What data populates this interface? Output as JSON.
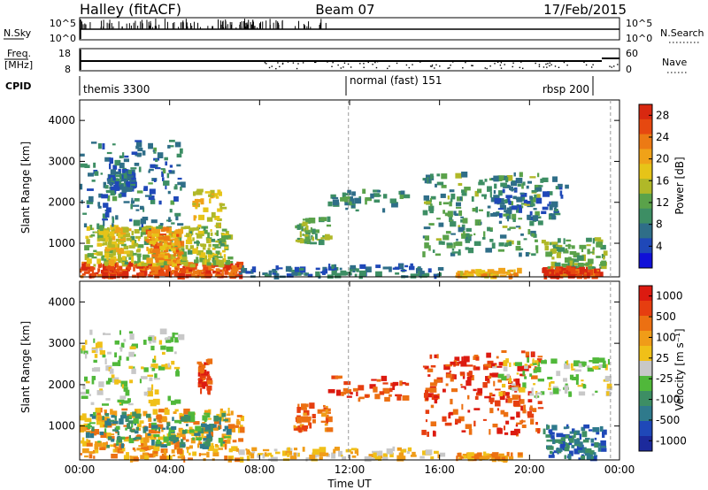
{
  "header": {
    "radar": "Halley (fitACF)",
    "beam": "Beam 07",
    "date": "17/Feb/2015"
  },
  "noise_panel": {
    "left_label": "N.Sky",
    "right_label": "N.Search",
    "left_ticks": [
      "10^5",
      "10^0"
    ],
    "right_ticks": [
      "10^5",
      "10^0"
    ]
  },
  "freq_panel": {
    "left_label_1": "Freq.",
    "left_label_2": "[MHz]",
    "right_label": "Nave",
    "left_ticks": [
      "18",
      "8"
    ],
    "right_ticks": [
      "60",
      "0"
    ]
  },
  "cpid": {
    "label": "CPID",
    "segments": [
      {
        "name": "themis 3300",
        "start_hour": 0.0,
        "end_hour": 11.95
      },
      {
        "name": "normal (fast) 151",
        "start_hour": 11.95,
        "end_hour": 23.6
      },
      {
        "name": "rbsp 200",
        "start_hour": 23.6,
        "end_hour": 24.0
      }
    ]
  },
  "colors": {
    "power": [
      "#1010d8",
      "#1f48b8",
      "#2f6e88",
      "#3d8e64",
      "#5aa24a",
      "#b0b828",
      "#e6c418",
      "#f0a218",
      "#ec7a14",
      "#e64810",
      "#d82810"
    ],
    "velocity": [
      "#1c2a9c",
      "#1f48b8",
      "#2f7a8c",
      "#3d8e64",
      "#50b83a",
      "#c8c8c8",
      "#f0c018",
      "#f09c18",
      "#ec7012",
      "#e63e10",
      "#dc1a10"
    ]
  },
  "chart_data": [
    {
      "type": "heatmap",
      "title": "",
      "xlabel": "",
      "ylabel": "Slant Range [km]",
      "xlim": [
        0,
        24
      ],
      "ylim": [
        180,
        4500
      ],
      "x_ticks": [
        "00:00",
        "04:00",
        "08:00",
        "12:00",
        "16:00",
        "20:00",
        "00:00"
      ],
      "y_ticks": [
        1000,
        2000,
        3000,
        4000
      ],
      "colorbar": {
        "label": "Power [dB]",
        "ticks": [
          4,
          8,
          12,
          16,
          20,
          24,
          28
        ],
        "range": [
          0,
          30
        ]
      },
      "blobs": [
        {
          "t": [
            0.0,
            7.2
          ],
          "r": [
            180,
            500
          ],
          "level": 27,
          "n": 260
        },
        {
          "t": [
            0.2,
            6.6
          ],
          "r": [
            450,
            1400
          ],
          "level": 14,
          "n": 300
        },
        {
          "t": [
            2.9,
            4.4
          ],
          "r": [
            500,
            1350
          ],
          "level": 22,
          "n": 110
        },
        {
          "t": [
            1.0,
            2.0
          ],
          "r": [
            500,
            1400
          ],
          "level": 18,
          "n": 60
        },
        {
          "t": [
            0.0,
            4.5
          ],
          "r": [
            1400,
            3500
          ],
          "level": 7,
          "n": 150
        },
        {
          "t": [
            1.2,
            2.3
          ],
          "r": [
            2200,
            2800
          ],
          "level": 6,
          "n": 70
        },
        {
          "t": [
            5.0,
            6.3
          ],
          "r": [
            1400,
            2300
          ],
          "level": 18,
          "n": 40
        },
        {
          "t": [
            9.5,
            11.0
          ],
          "r": [
            1000,
            1600
          ],
          "level": 12,
          "n": 50
        },
        {
          "t": [
            11.0,
            14.5
          ],
          "r": [
            1800,
            2300
          ],
          "level": 9,
          "n": 40
        },
        {
          "t": [
            15.2,
            20.4
          ],
          "r": [
            700,
            2700
          ],
          "level": 10,
          "n": 200
        },
        {
          "t": [
            18.2,
            21.6
          ],
          "r": [
            1600,
            2600
          ],
          "level": 6,
          "n": 90
        },
        {
          "t": [
            20.5,
            23.3
          ],
          "r": [
            200,
            1100
          ],
          "level": 12,
          "n": 90
        },
        {
          "t": [
            20.5,
            23.0
          ],
          "r": [
            180,
            380
          ],
          "level": 28,
          "n": 100
        },
        {
          "t": [
            16.7,
            19.5
          ],
          "r": [
            180,
            330
          ],
          "level": 20,
          "n": 50
        },
        {
          "t": [
            7.0,
            16.0
          ],
          "r": [
            180,
            450
          ],
          "level": 6,
          "n": 100
        }
      ]
    },
    {
      "type": "heatmap",
      "title": "",
      "xlabel": "Time UT",
      "ylabel": "Slant Range [km]",
      "xlim": [
        0,
        24
      ],
      "ylim": [
        180,
        4500
      ],
      "x_ticks": [
        "00:00",
        "04:00",
        "08:00",
        "12:00",
        "16:00",
        "20:00",
        "00:00"
      ],
      "y_ticks": [
        1000,
        2000,
        3000,
        4000
      ],
      "colorbar": {
        "label": "Velocity [m s^-1]",
        "ticks": [
          "1000",
          "500",
          "100",
          "25",
          "-25",
          "-100",
          "-500",
          "-1000"
        ],
        "range": [
          -1000,
          1000
        ]
      },
      "blobs": [
        {
          "t": [
            0.0,
            7.2
          ],
          "r": [
            180,
            1400
          ],
          "level": 7,
          "n": 300
        },
        {
          "t": [
            0.2,
            6.6
          ],
          "r": [
            500,
            1300
          ],
          "level": 3,
          "n": 150
        },
        {
          "t": [
            0.0,
            4.5
          ],
          "r": [
            1500,
            3300
          ],
          "level": 5,
          "n": 140
        },
        {
          "t": [
            5.2,
            5.7
          ],
          "r": [
            1800,
            2600
          ],
          "level": 9,
          "n": 40
        },
        {
          "t": [
            9.5,
            11.0
          ],
          "r": [
            900,
            1500
          ],
          "level": 8,
          "n": 50
        },
        {
          "t": [
            11.0,
            14.5
          ],
          "r": [
            1600,
            2200
          ],
          "level": 9,
          "n": 40
        },
        {
          "t": [
            15.2,
            20.4
          ],
          "r": [
            800,
            2800
          ],
          "level": 9,
          "n": 200
        },
        {
          "t": [
            18.2,
            23.5
          ],
          "r": [
            1700,
            2600
          ],
          "level": 5,
          "n": 110
        },
        {
          "t": [
            20.5,
            23.3
          ],
          "r": [
            200,
            1000
          ],
          "level": 2,
          "n": 100
        },
        {
          "t": [
            16.7,
            19.5
          ],
          "r": [
            180,
            330
          ],
          "level": 7,
          "n": 50
        },
        {
          "t": [
            7.0,
            16.0
          ],
          "r": [
            180,
            450
          ],
          "level": 6,
          "n": 100
        }
      ]
    }
  ]
}
